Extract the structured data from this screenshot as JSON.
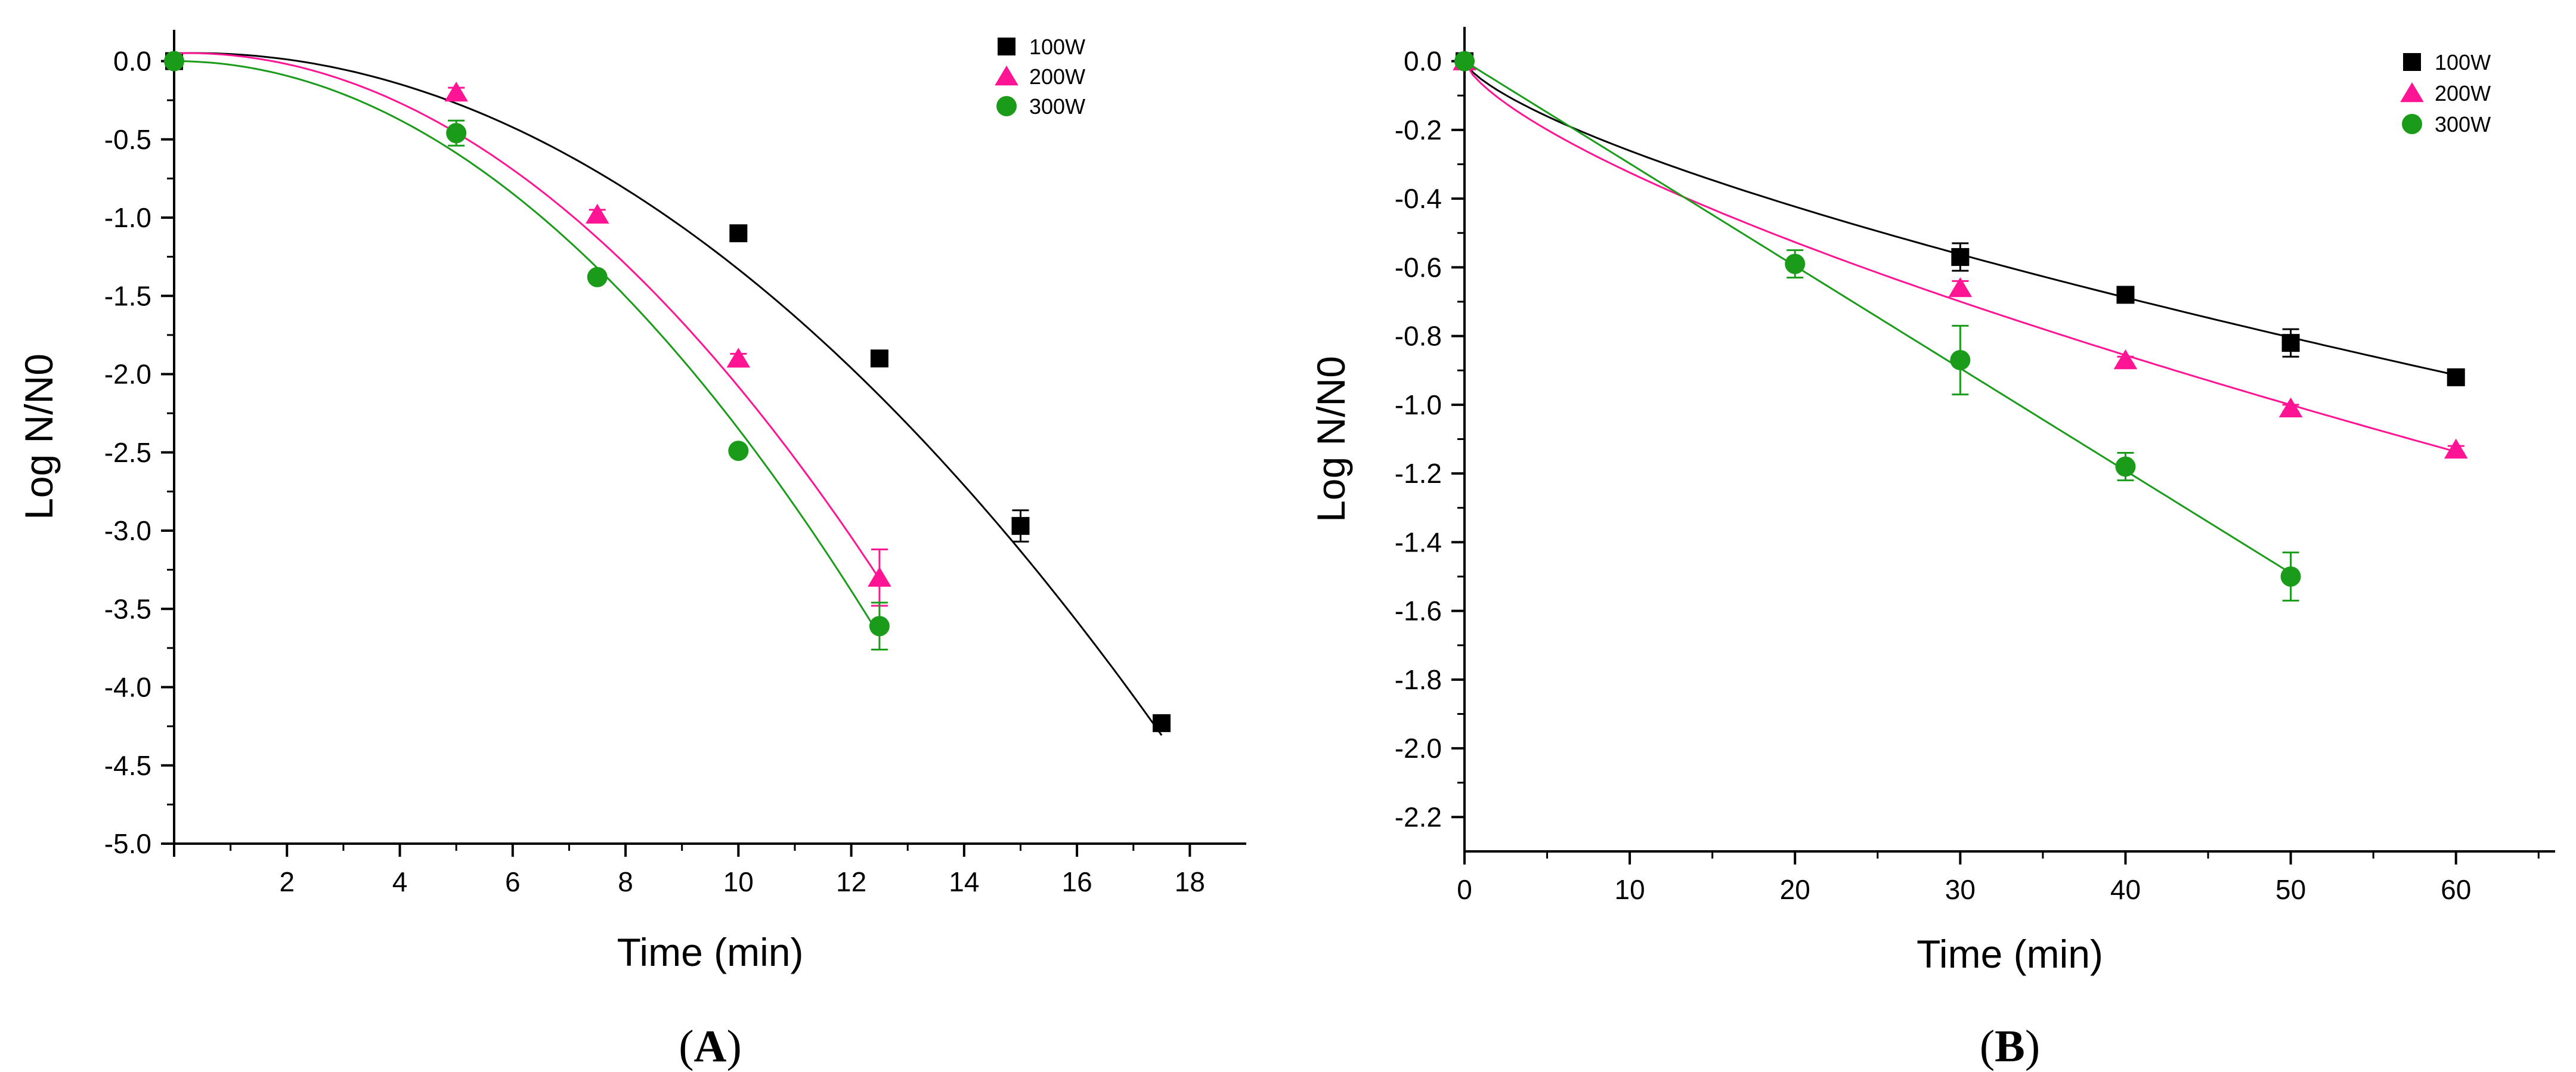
{
  "chart_data": [
    {
      "type": "scatter",
      "panel_label": "A",
      "xlabel": "Time (min)",
      "ylabel": "Log N/N0",
      "xlim": [
        0,
        19
      ],
      "ylim": [
        -5.0,
        0.2
      ],
      "xticks": [
        2,
        4,
        6,
        8,
        10,
        12,
        14,
        16,
        18
      ],
      "yticks": [
        0.0,
        -0.5,
        -1.0,
        -1.5,
        -2.0,
        -2.5,
        -3.0,
        -3.5,
        -4.0,
        -4.5,
        -5.0
      ],
      "ytick_labels": [
        "0.0",
        "-0.5",
        "-1.0",
        "-1.5",
        "-2.0",
        "-2.5",
        "-3.0",
        "-3.5",
        "-4.0",
        "-4.5",
        "-5.0"
      ],
      "legend_position": "top-right",
      "series": [
        {
          "name": "100W",
          "marker": "square",
          "color": "#000000",
          "x": [
            0,
            10,
            12.5,
            15,
            17.5
          ],
          "y": [
            0,
            -1.1,
            -1.9,
            -2.97,
            -4.23
          ],
          "err": [
            0,
            0.03,
            0.03,
            0.1,
            0.03
          ],
          "fit": {
            "model": "quadratic",
            "a": 0.05,
            "b": 0.01,
            "c": -0.0148,
            "x_end": 17.5
          }
        },
        {
          "name": "200W",
          "marker": "triangle",
          "color": "#ff1493",
          "x": [
            5,
            7.5,
            10,
            12.5
          ],
          "y": [
            -0.2,
            -0.98,
            -1.9,
            -3.3
          ],
          "err": [
            0.03,
            0.03,
            0.03,
            0.18
          ],
          "fit": {
            "model": "quadratic",
            "a": 0.05,
            "b": 0.01,
            "c": -0.0223,
            "x_end": 12.5
          }
        },
        {
          "name": "300W",
          "marker": "circle",
          "color": "#1a9b1a",
          "x": [
            0,
            5,
            7.5,
            10,
            12.5
          ],
          "y": [
            0,
            -0.46,
            -1.38,
            -2.49,
            -3.61
          ],
          "err": [
            0,
            0.08,
            0.03,
            0.03,
            0.15
          ],
          "fit": {
            "model": "quadratic",
            "a": 0.0,
            "b": 0.0,
            "c": -0.0235,
            "x_end": 12.5
          }
        }
      ]
    },
    {
      "type": "scatter",
      "panel_label": "B",
      "xlabel": "Time (min)",
      "ylabel": "Log N/N0",
      "xlim": [
        0,
        66
      ],
      "ylim": [
        -2.3,
        0.1
      ],
      "xticks": [
        0,
        10,
        20,
        30,
        40,
        50,
        60
      ],
      "yticks": [
        0.0,
        -0.2,
        -0.4,
        -0.6,
        -0.8,
        -1.0,
        -1.2,
        -1.4,
        -1.6,
        -1.8,
        -2.0,
        -2.2
      ],
      "ytick_labels": [
        "0.0",
        "-0.2",
        "-0.4",
        "-0.6",
        "-0.8",
        "-1.0",
        "-1.2",
        "-1.4",
        "-1.6",
        "-1.8",
        "-2.0",
        "-2.2"
      ],
      "legend_position": "top-right",
      "series": [
        {
          "name": "100W",
          "marker": "square",
          "color": "#000000",
          "x": [
            0,
            30,
            40,
            50,
            60
          ],
          "y": [
            0,
            -0.57,
            -0.68,
            -0.82,
            -0.92
          ],
          "err": [
            0,
            0.04,
            0.01,
            0.04,
            0.01
          ],
          "fit": {
            "model": "power",
            "k": 0.052,
            "n": 0.7,
            "x_end": 60
          }
        },
        {
          "name": "200W",
          "marker": "triangle",
          "color": "#ff1493",
          "x": [
            0,
            30,
            40,
            50,
            60
          ],
          "y": [
            0,
            -0.66,
            -0.87,
            -1.01,
            -1.13
          ],
          "err": [
            0,
            0.02,
            0.01,
            0.01,
            0.01
          ],
          "fit": {
            "model": "power",
            "k": 0.0647,
            "n": 0.7,
            "x_end": 60
          }
        },
        {
          "name": "300W",
          "marker": "circle",
          "color": "#1a9b1a",
          "x": [
            0,
            20,
            30,
            40,
            50
          ],
          "y": [
            0,
            -0.59,
            -0.87,
            -1.18,
            -1.5
          ],
          "err": [
            0,
            0.04,
            0.1,
            0.04,
            0.07
          ],
          "fit": {
            "model": "linear",
            "slope": -0.0298,
            "x_end": 50
          }
        }
      ]
    }
  ]
}
